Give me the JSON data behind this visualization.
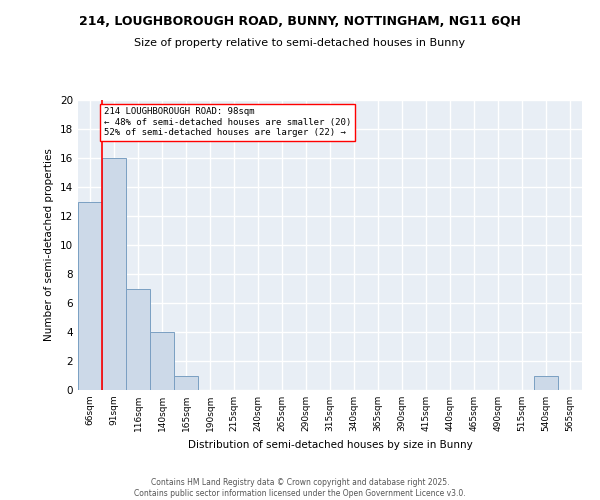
{
  "title1": "214, LOUGHBOROUGH ROAD, BUNNY, NOTTINGHAM, NG11 6QH",
  "title2": "Size of property relative to semi-detached houses in Bunny",
  "xlabel": "Distribution of semi-detached houses by size in Bunny",
  "ylabel": "Number of semi-detached properties",
  "bar_color": "#ccd9e8",
  "bar_edge_color": "#7a9fc2",
  "bins": [
    "66sqm",
    "91sqm",
    "116sqm",
    "140sqm",
    "165sqm",
    "190sqm",
    "215sqm",
    "240sqm",
    "265sqm",
    "290sqm",
    "315sqm",
    "340sqm",
    "365sqm",
    "390sqm",
    "415sqm",
    "440sqm",
    "465sqm",
    "490sqm",
    "515sqm",
    "540sqm",
    "565sqm"
  ],
  "values": [
    13,
    16,
    7,
    4,
    1,
    0,
    0,
    0,
    0,
    0,
    0,
    0,
    0,
    0,
    0,
    0,
    0,
    0,
    0,
    1,
    0
  ],
  "annotation_text": "214 LOUGHBOROUGH ROAD: 98sqm\n← 48% of semi-detached houses are smaller (20)\n52% of semi-detached houses are larger (22) →",
  "ylim": [
    0,
    20
  ],
  "yticks": [
    0,
    2,
    4,
    6,
    8,
    10,
    12,
    14,
    16,
    18,
    20
  ],
  "background_color": "#e8eef5",
  "grid_color": "#ffffff",
  "footer_line1": "Contains HM Land Registry data © Crown copyright and database right 2025.",
  "footer_line2": "Contains public sector information licensed under the Open Government Licence v3.0."
}
